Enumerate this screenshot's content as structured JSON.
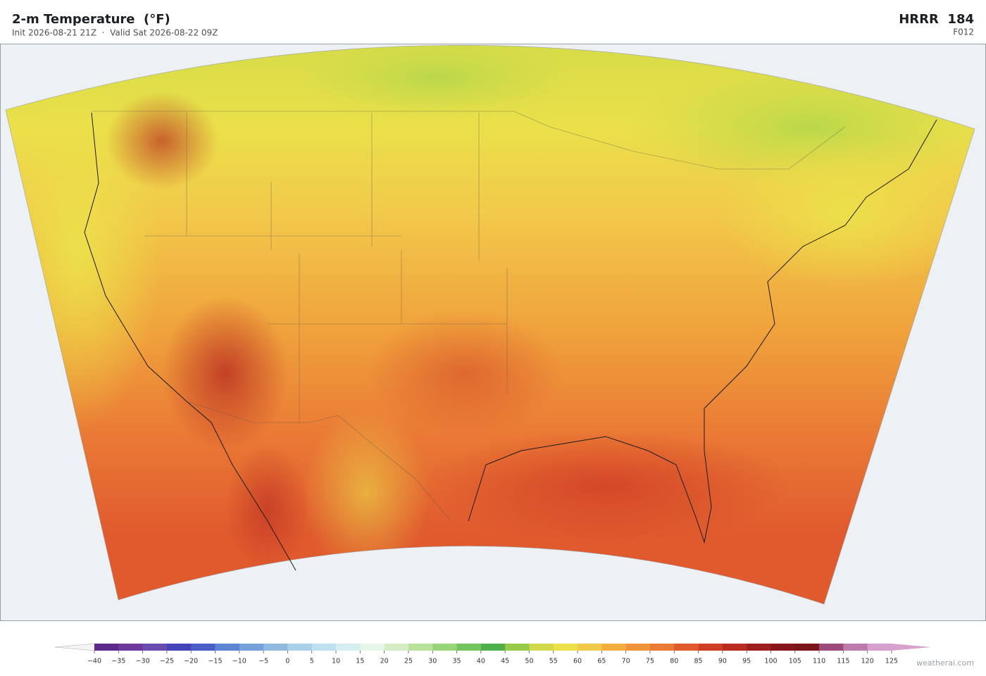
{
  "header": {
    "title": "2-m Temperature  (°F)",
    "subtitle": "Init 2026-08-21 21Z  ·  Valid Sat 2026-08-22 09Z",
    "model": "HRRR  184",
    "forecast_hour": "F012"
  },
  "colorbar": {
    "ticks": [
      {
        "value": -40,
        "label": "−40"
      },
      {
        "value": -35,
        "label": "−35"
      },
      {
        "value": -30,
        "label": "−30"
      },
      {
        "value": -25,
        "label": "−25"
      },
      {
        "value": -20,
        "label": "−20"
      },
      {
        "value": -15,
        "label": "−15"
      },
      {
        "value": -10,
        "label": "−10"
      },
      {
        "value": -5,
        "label": "−5"
      },
      0,
      5,
      10,
      15,
      20,
      25,
      30,
      35,
      40,
      45,
      50,
      55,
      60,
      65,
      70,
      75,
      80,
      85,
      90,
      95,
      100,
      105,
      110,
      115,
      120,
      125
    ],
    "colors": [
      "#5b2a8a",
      "#6d3a9c",
      "#6a4bb0",
      "#4443b8",
      "#4a5ec8",
      "#5b86d4",
      "#75a2dc",
      "#8fbae0",
      "#a8d1e8",
      "#bfe0ee",
      "#d6eef2",
      "#e6f6e8",
      "#d4edc4",
      "#b8e19a",
      "#98d478",
      "#74c45e",
      "#4db04a",
      "#97c94a",
      "#cfd94a",
      "#ece04a",
      "#f2c84a",
      "#f2ae3f",
      "#ef943a",
      "#ea7a35",
      "#e05a2e",
      "#d03e26",
      "#b82c22",
      "#9f1f1f",
      "#87171b",
      "#7a1519",
      "#9c4a7a",
      "#bd7aaa",
      "#d8a0cc"
    ],
    "under_color": "#f4f4f4",
    "over_color": "#d8a0cc"
  },
  "watermark": "weatherai.com"
}
